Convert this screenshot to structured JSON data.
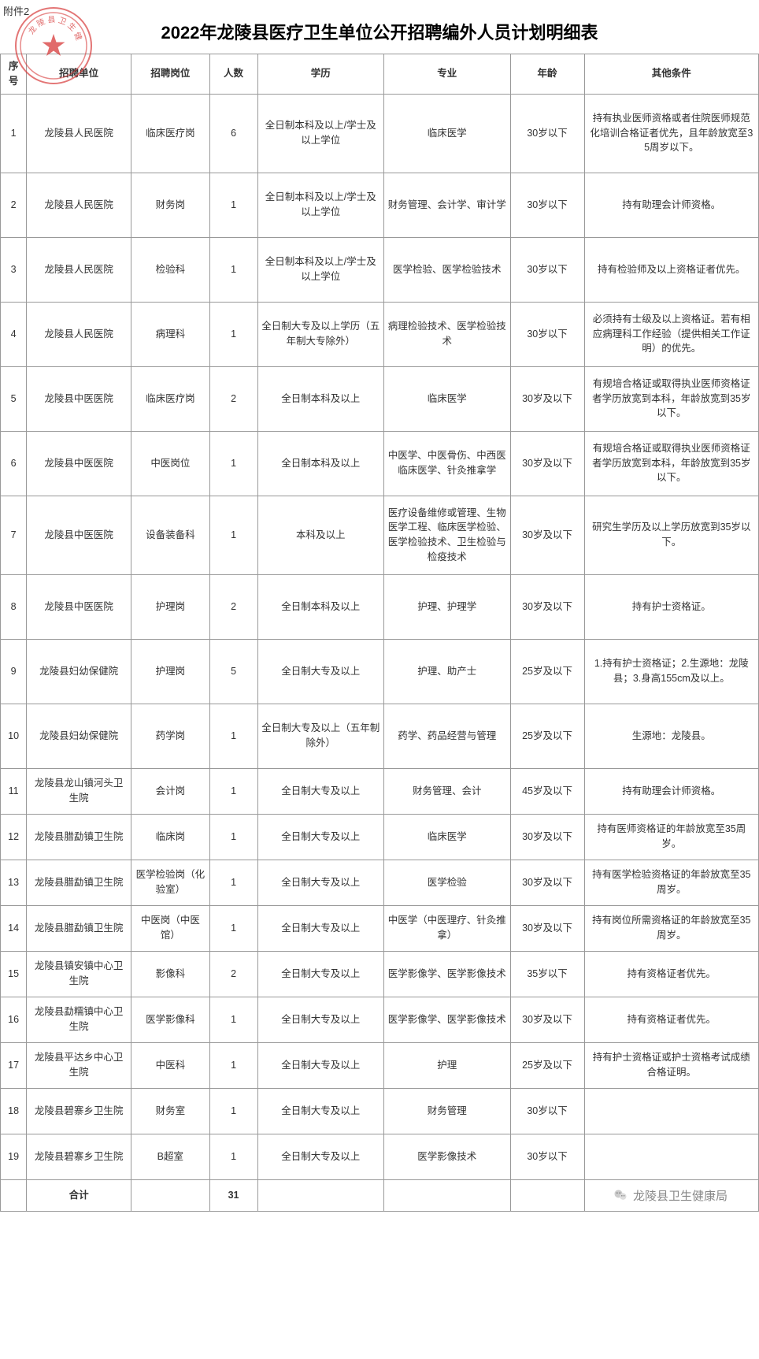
{
  "attachmentLabel": "附件2",
  "title": "2022年龙陵县医疗卫生单位公开招聘编外人员计划明细表",
  "seal": {
    "text": "龙陵县卫生健康",
    "color": "#d73a3a",
    "outerRadius": 48,
    "innerRadius": 42
  },
  "columns": [
    "序号",
    "招聘单位",
    "招聘岗位",
    "人数",
    "学历",
    "专业",
    "年龄",
    "其他条件"
  ],
  "rows": [
    {
      "idx": "1",
      "unit": "龙陵县人民医院",
      "post": "临床医疗岗",
      "num": "6",
      "edu": "全日制本科及以上/学士及以上学位",
      "major": "临床医学",
      "age": "30岁以下",
      "other": "持有执业医师资格或者住院医师规范化培训合格证者优先，且年龄放宽至35周岁以下。",
      "h": "tall"
    },
    {
      "idx": "2",
      "unit": "龙陵县人民医院",
      "post": "财务岗",
      "num": "1",
      "edu": "全日制本科及以上/学士及以上学位",
      "major": "财务管理、会计学、审计学",
      "age": "30岁以下",
      "other": "持有助理会计师资格。",
      "h": ""
    },
    {
      "idx": "3",
      "unit": "龙陵县人民医院",
      "post": "检验科",
      "num": "1",
      "edu": "全日制本科及以上/学士及以上学位",
      "major": "医学检验、医学检验技术",
      "age": "30岁以下",
      "other": "持有检验师及以上资格证者优先。",
      "h": ""
    },
    {
      "idx": "4",
      "unit": "龙陵县人民医院",
      "post": "病理科",
      "num": "1",
      "edu": "全日制大专及以上学历（五年制大专除外）",
      "major": "病理检验技术、医学检验技术",
      "age": "30岁以下",
      "other": "必须持有士级及以上资格证。若有相应病理科工作经验（提供相关工作证明）的优先。",
      "h": ""
    },
    {
      "idx": "5",
      "unit": "龙陵县中医医院",
      "post": "临床医疗岗",
      "num": "2",
      "edu": "全日制本科及以上",
      "major": "临床医学",
      "age": "30岁及以下",
      "other": "有规培合格证或取得执业医师资格证者学历放宽到本科，年龄放宽到35岁以下。",
      "h": ""
    },
    {
      "idx": "6",
      "unit": "龙陵县中医医院",
      "post": "中医岗位",
      "num": "1",
      "edu": "全日制本科及以上",
      "major": "中医学、中医骨伤、中西医临床医学、针灸推拿学",
      "age": "30岁及以下",
      "other": "有规培合格证或取得执业医师资格证者学历放宽到本科，年龄放宽到35岁以下。",
      "h": ""
    },
    {
      "idx": "7",
      "unit": "龙陵县中医医院",
      "post": "设备装备科",
      "num": "1",
      "edu": "本科及以上",
      "major": "医疗设备维修或管理、生物医学工程、临床医学检验、医学检验技术、卫生检验与检疫技术",
      "age": "30岁及以下",
      "other": "研究生学历及以上学历放宽到35岁以下。",
      "h": "tall"
    },
    {
      "idx": "8",
      "unit": "龙陵县中医医院",
      "post": "护理岗",
      "num": "2",
      "edu": "全日制本科及以上",
      "major": "护理、护理学",
      "age": "30岁及以下",
      "other": "持有护士资格证。",
      "h": ""
    },
    {
      "idx": "9",
      "unit": "龙陵县妇幼保健院",
      "post": "护理岗",
      "num": "5",
      "edu": "全日制大专及以上",
      "major": "护理、助产士",
      "age": "25岁及以下",
      "other": "1.持有护士资格证；2.生源地：龙陵县；3.身高155cm及以上。",
      "h": ""
    },
    {
      "idx": "10",
      "unit": "龙陵县妇幼保健院",
      "post": "药学岗",
      "num": "1",
      "edu": "全日制大专及以上（五年制除外）",
      "major": "药学、药品经营与管理",
      "age": "25岁及以下",
      "other": "生源地：龙陵县。",
      "h": ""
    },
    {
      "idx": "11",
      "unit": "龙陵县龙山镇河头卫生院",
      "post": "会计岗",
      "num": "1",
      "edu": "全日制大专及以上",
      "major": "财务管理、会计",
      "age": "45岁及以下",
      "other": "持有助理会计师资格。",
      "h": "short"
    },
    {
      "idx": "12",
      "unit": "龙陵县腊勐镇卫生院",
      "post": "临床岗",
      "num": "1",
      "edu": "全日制大专及以上",
      "major": "临床医学",
      "age": "30岁及以下",
      "other": "持有医师资格证的年龄放宽至35周岁。",
      "h": "short"
    },
    {
      "idx": "13",
      "unit": "龙陵县腊勐镇卫生院",
      "post": "医学检验岗（化验室）",
      "num": "1",
      "edu": "全日制大专及以上",
      "major": "医学检验",
      "age": "30岁及以下",
      "other": "持有医学检验资格证的年龄放宽至35周岁。",
      "h": "short"
    },
    {
      "idx": "14",
      "unit": "龙陵县腊勐镇卫生院",
      "post": "中医岗（中医馆）",
      "num": "1",
      "edu": "全日制大专及以上",
      "major": "中医学（中医理疗、针灸推拿）",
      "age": "30岁及以下",
      "other": "持有岗位所需资格证的年龄放宽至35周岁。",
      "h": "short"
    },
    {
      "idx": "15",
      "unit": "龙陵县镇安镇中心卫生院",
      "post": "影像科",
      "num": "2",
      "edu": "全日制大专及以上",
      "major": "医学影像学、医学影像技术",
      "age": "35岁以下",
      "other": "持有资格证者优先。",
      "h": "short"
    },
    {
      "idx": "16",
      "unit": "龙陵县勐糯镇中心卫生院",
      "post": "医学影像科",
      "num": "1",
      "edu": "全日制大专及以上",
      "major": "医学影像学、医学影像技术",
      "age": "30岁及以下",
      "other": "持有资格证者优先。",
      "h": "short"
    },
    {
      "idx": "17",
      "unit": "龙陵县平达乡中心卫生院",
      "post": "中医科",
      "num": "1",
      "edu": "全日制大专及以上",
      "major": "护理",
      "age": "25岁及以下",
      "other": "持有护士资格证或护士资格考试成绩合格证明。",
      "h": "short"
    },
    {
      "idx": "18",
      "unit": "龙陵县碧寨乡卫生院",
      "post": "财务室",
      "num": "1",
      "edu": "全日制大专及以上",
      "major": "财务管理",
      "age": "30岁以下",
      "other": "",
      "h": "short"
    },
    {
      "idx": "19",
      "unit": "龙陵县碧寨乡卫生院",
      "post": "B超室",
      "num": "1",
      "edu": "全日制大专及以上",
      "major": "医学影像技术",
      "age": "30岁以下",
      "other": "",
      "h": "short"
    }
  ],
  "totalLabel": "合计",
  "totalNum": "31",
  "footerSource": "龙陵县卫生健康局",
  "style": {
    "borderColor": "#999999",
    "headerBg": "#ffffff",
    "textColor": "#333333",
    "titleFontSize": 22,
    "cellFontSize": 12.5,
    "pageWidth": 964,
    "pageHeight": 1725
  }
}
